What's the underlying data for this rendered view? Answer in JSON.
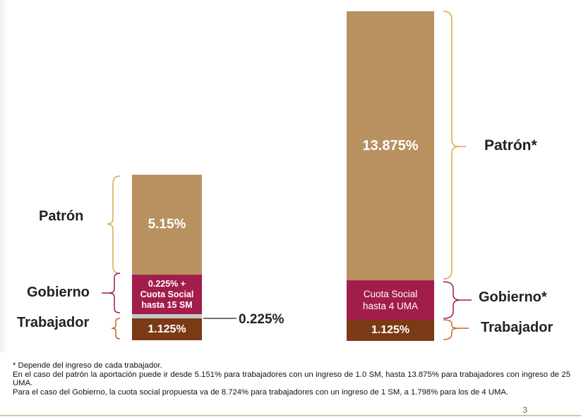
{
  "colors": {
    "patron": "#b99160",
    "gobierno": "#a21d4c",
    "trabajador": "#7b3a15",
    "gap": "#c8c8c8",
    "brace_patron": "#d9a94d",
    "brace_gobierno": "#9a1e4c",
    "brace_trabajador": "#c7662a"
  },
  "left_bar": {
    "patron_value": "5.15%",
    "gobierno_lines": [
      "0.225% +",
      "Cuota Social",
      "hasta 15 SM"
    ],
    "gap_value": "0.225%",
    "trabajador_value": "1.125%",
    "label_patron": "Patrón",
    "label_gobierno": "Gobierno",
    "label_trabajador": "Trabajador"
  },
  "right_bar": {
    "patron_value": "13.875%",
    "gobierno_lines": [
      "Cuota Social",
      "hasta 4 UMA"
    ],
    "trabajador_value": "1.125%",
    "label_patron": "Patrón*",
    "label_gobierno": "Gobierno*",
    "label_trabajador": "Trabajador"
  },
  "notes": [
    "* Depende del ingreso de cada trabajador.",
    "En el caso del patrón la aportación puede ir desde 5.151% para trabajadores con un ingreso de 1.0 SM, hasta 13.875% para trabajadores con ingreso de 25 UMA.",
    "Para el caso del Gobierno, la cuota social propuesta va de 8.724% para trabajadores con un ingreso de 1 SM, a 1.798% para los de 4 UMA."
  ],
  "page_number": "3"
}
